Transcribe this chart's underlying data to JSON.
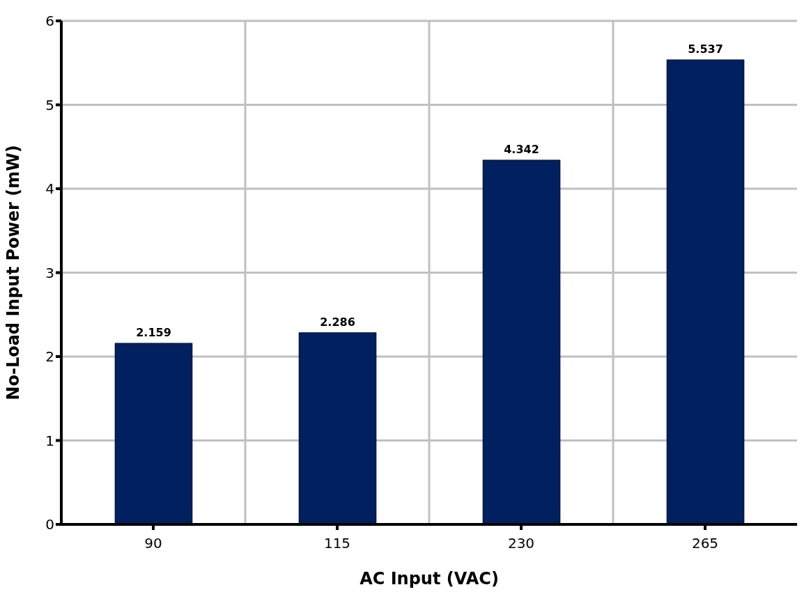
{
  "chart_data": {
    "type": "bar",
    "xlabel": "AC Input (VAC)",
    "ylabel": "No-Load Input Power (mW)",
    "categories": [
      "90",
      "115",
      "230",
      "265"
    ],
    "values": [
      2.159,
      2.286,
      4.342,
      5.537
    ],
    "color": "#002060",
    "ylim": [
      0,
      6
    ],
    "yticks": [
      0,
      1,
      2,
      3,
      4,
      5,
      6
    ],
    "grid": true,
    "data_labels": true
  }
}
